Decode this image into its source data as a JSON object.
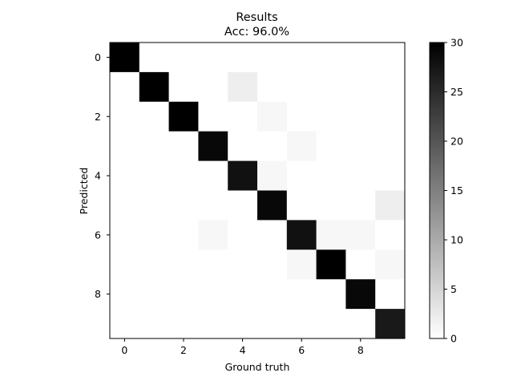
{
  "chart_data": {
    "type": "heatmap",
    "title": "Results",
    "subtitle": "Acc: 96.0%",
    "xlabel": "Ground truth",
    "ylabel": "Predicted",
    "x_tick_labels": [
      "0",
      "2",
      "4",
      "6",
      "8"
    ],
    "y_tick_labels": [
      "0",
      "2",
      "4",
      "6",
      "8"
    ],
    "colorbar_tick_labels": [
      "0",
      "5",
      "10",
      "15",
      "20",
      "25",
      "30"
    ],
    "colormap": "gray_r",
    "vmin": 0,
    "vmax": 30,
    "matrix": [
      [
        30,
        0,
        0,
        0,
        0,
        0,
        0,
        0,
        0,
        0
      ],
      [
        0,
        30,
        0,
        0,
        2,
        0,
        0,
        0,
        0,
        0
      ],
      [
        0,
        0,
        30,
        0,
        0,
        1,
        0,
        0,
        0,
        0
      ],
      [
        0,
        0,
        0,
        29,
        0,
        0,
        1,
        0,
        0,
        0
      ],
      [
        0,
        0,
        0,
        0,
        28,
        1,
        0,
        0,
        0,
        0
      ],
      [
        0,
        0,
        0,
        0,
        0,
        29,
        0,
        0,
        0,
        2
      ],
      [
        0,
        0,
        0,
        1,
        0,
        0,
        28,
        1,
        1,
        0
      ],
      [
        0,
        0,
        0,
        0,
        0,
        0,
        1,
        30,
        0,
        1
      ],
      [
        0,
        0,
        0,
        0,
        0,
        0,
        0,
        0,
        29,
        0
      ],
      [
        0,
        0,
        0,
        0,
        0,
        0,
        0,
        0,
        0,
        27
      ]
    ]
  }
}
